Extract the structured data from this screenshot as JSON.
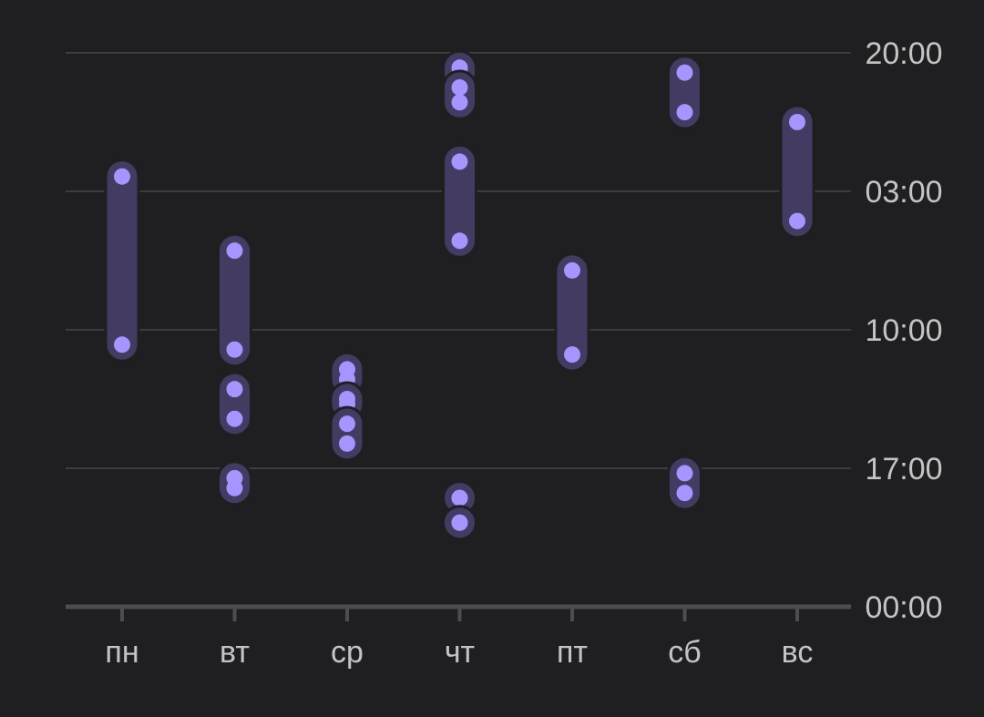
{
  "colors": {
    "background": "#1f1f22",
    "grid": "#3d3d40",
    "axis": "#4a4d52",
    "tick_label": "#c4c4c4",
    "range_fill": "#433b62",
    "point": "#a694ff"
  },
  "chart_data": {
    "type": "scatter",
    "title": "",
    "xlabel": "",
    "ylabel": "",
    "categories": [
      "пн",
      "вт",
      "ср",
      "чт",
      "пт",
      "сб",
      "вс"
    ],
    "y_ticks": [
      "20:00",
      "03:00",
      "10:00",
      "17:00",
      "00:00"
    ],
    "y_direction": "time increases downward; axis spans 20:00 (top) through 03:00, 10:00, 17:00 to 00:00 (bottom), 28 hours",
    "y_axis_position": "right",
    "grid": true,
    "legend": "none",
    "sessions": [
      {
        "day": "пн",
        "start": "02:15",
        "end": "10:45"
      },
      {
        "day": "вт",
        "start": "06:00",
        "end": "11:00"
      },
      {
        "day": "вт",
        "start": "13:00",
        "end": "14:30"
      },
      {
        "day": "вт",
        "start": "17:30",
        "end": "18:00"
      },
      {
        "day": "ср",
        "start": "12:00",
        "end": "12:30"
      },
      {
        "day": "ср",
        "start": "13:30",
        "end": "13:45"
      },
      {
        "day": "ср",
        "start": "14:45",
        "end": "15:45"
      },
      {
        "day": "чт",
        "start": "01:30",
        "end": "05:30"
      },
      {
        "day": "чт",
        "start": "18:30",
        "end": "18:30"
      },
      {
        "day": "чт",
        "start": "19:45",
        "end": "19:45"
      },
      {
        "day": "чт",
        "start": "20:45",
        "end": "21:00"
      },
      {
        "day": "чт",
        "start": "21:45",
        "end": "22:30"
      },
      {
        "day": "пт",
        "start": "07:00",
        "end": "11:15"
      },
      {
        "day": "сб",
        "start": "17:15",
        "end": "18:15"
      },
      {
        "day": "сб",
        "start": "21:00",
        "end": "23:00"
      },
      {
        "day": "вс",
        "start": "23:30",
        "end": "04:30"
      }
    ]
  }
}
